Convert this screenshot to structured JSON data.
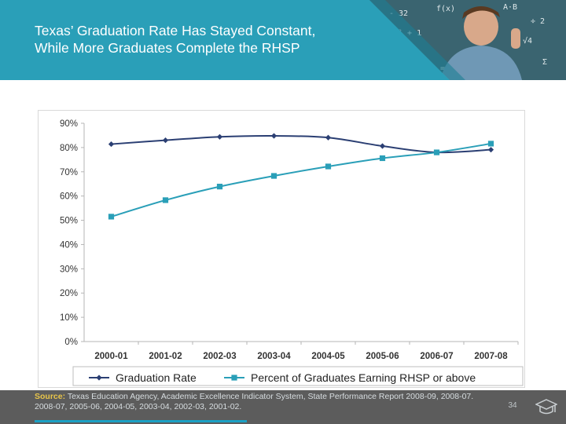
{
  "header": {
    "title_line1": "Texas’ Graduation Rate Has Stayed Constant,",
    "title_line2": "While More Graduates Complete the RHSP",
    "colors": {
      "banner": "#2a9fb8",
      "banner_dark": "#1c7f95",
      "photo_bg": "#3a6470",
      "chalk": "#dfe8ea"
    }
  },
  "chart_data": {
    "type": "line",
    "categories": [
      "2000-01",
      "2001-02",
      "2002-03",
      "2003-04",
      "2004-05",
      "2005-06",
      "2006-07",
      "2007-08"
    ],
    "ylim": [
      0,
      90
    ],
    "yticks": [
      0,
      10,
      20,
      30,
      40,
      50,
      60,
      70,
      80,
      90
    ],
    "ytick_labels": [
      "0%",
      "10%",
      "20%",
      "30%",
      "40%",
      "50%",
      "60%",
      "70%",
      "80%",
      "90%"
    ],
    "series": [
      {
        "name": "Graduation Rate",
        "values": [
          81.4,
          83.0,
          84.4,
          84.8,
          84.1,
          80.6,
          78.0,
          79.1
        ],
        "color": "#2b3f73",
        "marker": "diamond"
      },
      {
        "name": "Percent of Graduates Earning RHSP or above",
        "values": [
          51.5,
          58.3,
          63.9,
          68.3,
          72.2,
          75.6,
          78.0,
          81.6
        ],
        "color": "#2a9fb8",
        "marker": "square"
      }
    ],
    "legend": "bottom",
    "grid": false
  },
  "footer": {
    "source_label": "Source:",
    "source_text": " Texas Education Agency, Academic Excellence Indicator System, State Performance Report 2008-09, 2008-07. 2008-07, 2005-06, 2004-05, 2003-04, 2002-03, 2001-02.",
    "page_number": "34",
    "icon": "graduation-cap-icon"
  }
}
